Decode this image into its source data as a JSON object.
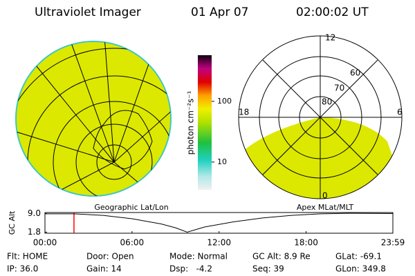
{
  "header": {
    "title": "Ultraviolet Imager",
    "date": "01 Apr 07",
    "time": "02:00:02 UT"
  },
  "colorbar": {
    "label": "photon cm⁻²s⁻¹",
    "lim": [
      3.5,
      575
    ],
    "log": true,
    "ticks": [
      10,
      100
    ]
  },
  "polar": {
    "mlt_labels": [
      "12",
      "18",
      "6",
      "0"
    ],
    "lat_labels": [
      "60",
      "70",
      "80"
    ]
  },
  "altitude": {
    "ylabel": "GC Alt",
    "left_label": "Geographic Lat/Lon",
    "right_label": "Apex MLat/MLT",
    "xlim": [
      0,
      23.98
    ],
    "ylim": [
      1.4,
      9.4
    ],
    "xticks": [
      {
        "value": 0,
        "label": "00:00"
      },
      {
        "value": 6,
        "label": "06:00"
      },
      {
        "value": 12,
        "label": "12:00"
      },
      {
        "value": 18,
        "label": "18:00"
      },
      {
        "value": 23.98,
        "label": "23:59"
      }
    ],
    "yticks": [
      {
        "value": 9.0,
        "label": "9.0"
      },
      {
        "value": 1.8,
        "label": "1.8"
      }
    ],
    "hours": [
      0,
      2,
      4,
      6,
      8,
      9,
      9.8,
      11,
      13,
      15,
      17,
      19,
      21,
      23.98
    ],
    "values": [
      8.9,
      8.9,
      8.3,
      7.0,
      5.0,
      3.5,
      1.8,
      3.8,
      5.8,
      7.3,
      8.3,
      8.9,
      9.1,
      9.0
    ],
    "marker_hour": 2.0,
    "marker_color": "#ff0000"
  },
  "footer": {
    "rows": [
      [
        "Flt: HOME",
        "Door: Open",
        "Mode: Normal",
        "GC Alt: 8.9 Re",
        "GLat: -69.1"
      ],
      [
        "IP: 36.0",
        "Gain: 14",
        "Dsp:   -4.2",
        "Seq: 39",
        "GLon: 349.8"
      ]
    ]
  }
}
